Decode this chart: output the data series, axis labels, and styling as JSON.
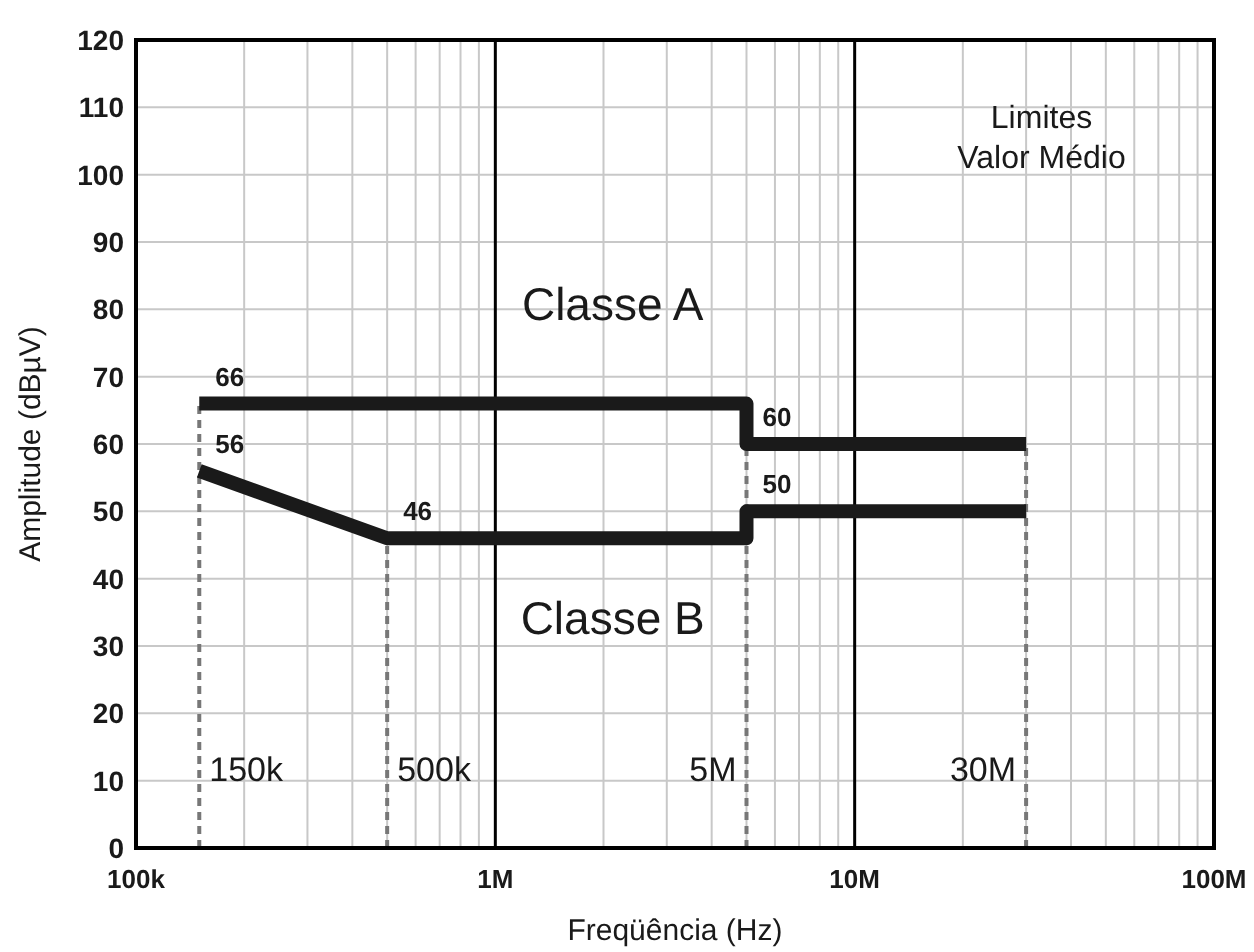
{
  "chart_data": {
    "type": "line",
    "xlabel": "Freqüência (Hz)",
    "ylabel": "Amplitude (dBµV)",
    "log": "x",
    "grid": true,
    "line_style": "solid",
    "xlim": [
      100000,
      100000000
    ],
    "xticks": [
      {
        "value": 100000,
        "label": "100k"
      },
      {
        "value": 1000000,
        "label": "1M"
      },
      {
        "value": 10000000,
        "label": "10M"
      },
      {
        "value": 100000000,
        "label": "100M"
      }
    ],
    "ylim": [
      0,
      120
    ],
    "yticks": [
      0,
      10,
      20,
      30,
      40,
      50,
      60,
      70,
      80,
      90,
      100,
      110,
      120
    ],
    "series": [
      {
        "name": "Classe A",
        "color": "#1a1a1a",
        "x": [
          150000,
          5000000,
          5000000,
          30000000
        ],
        "values": [
          66,
          66,
          60,
          60
        ],
        "value_labels": [
          "66",
          null,
          "60",
          null
        ]
      },
      {
        "name": "Classe B",
        "color": "#1a1a1a",
        "x": [
          150000,
          500000,
          5000000,
          5000000,
          30000000
        ],
        "values": [
          56,
          46,
          46,
          50,
          50
        ],
        "value_labels": [
          "56",
          "46",
          null,
          "50",
          null
        ]
      }
    ],
    "ref_lines": [
      {
        "axis": "x",
        "value": 150000,
        "label": "150k",
        "color": "#777777",
        "line_style": "dashed"
      },
      {
        "axis": "x",
        "value": 500000,
        "label": "500k",
        "color": "#777777",
        "line_style": "dashed"
      },
      {
        "axis": "x",
        "value": 5000000,
        "label": "5M",
        "color": "#777777",
        "line_style": "dashed"
      },
      {
        "axis": "x",
        "value": 30000000,
        "label": "30M",
        "color": "#777777",
        "line_style": "dashed"
      }
    ],
    "annotations": [
      "Limites",
      "Valor Médio"
    ]
  }
}
